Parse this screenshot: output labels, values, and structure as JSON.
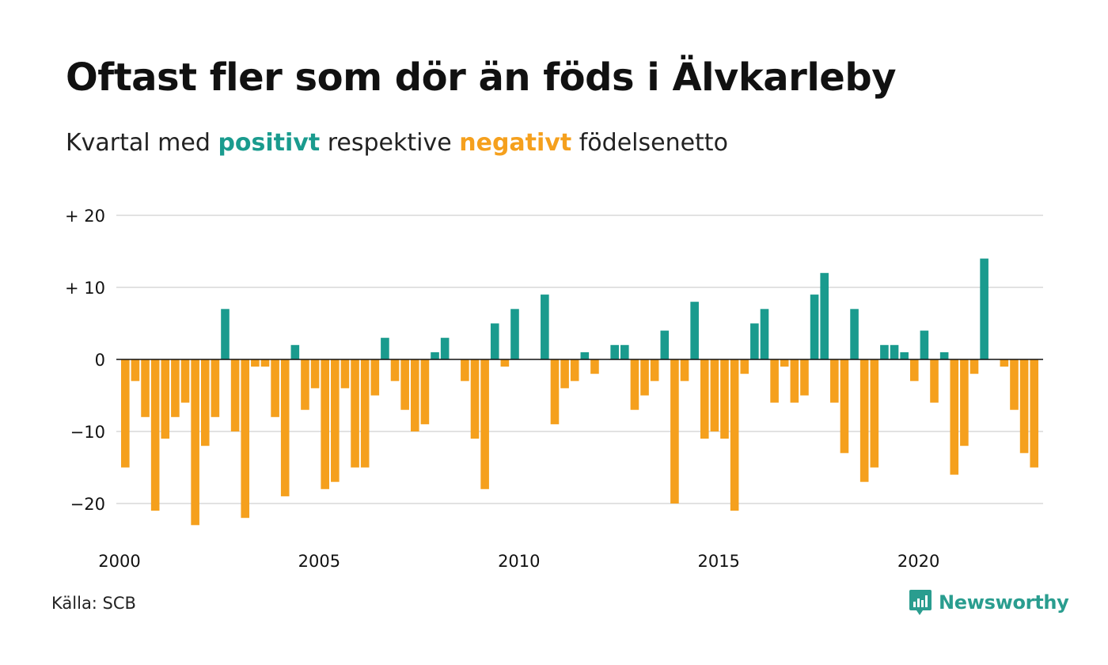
{
  "header": {
    "title": "Oftast fler som dör än föds i Älvkarleby",
    "subtitle_pre": "Kvartal med",
    "subtitle_pos": "positivt",
    "subtitle_mid": "respektive",
    "subtitle_neg": "negativt",
    "subtitle_post": "födelsenetto"
  },
  "footer": {
    "source": "Källa: SCB",
    "brand": "Newsworthy"
  },
  "colors": {
    "positive": "#1a9b8e",
    "negative": "#f5a01d",
    "grid": "#e2e2e2",
    "zero": "#111111",
    "brand": "#2a9d8f"
  },
  "chart_data": {
    "type": "bar",
    "x_start": "2000 Q1",
    "ylim": [
      -25,
      20
    ],
    "yticks": [
      20,
      10,
      0,
      -10,
      -20
    ],
    "ytick_labels": [
      "+ 20",
      "+ 10",
      "0",
      "−10",
      "−20"
    ],
    "xtick_labels": [
      "2000",
      "2005",
      "2010",
      "2015",
      "2020"
    ],
    "grid": true,
    "values": [
      -15,
      -3,
      -8,
      -21,
      -11,
      -8,
      -6,
      -23,
      -12,
      -8,
      7,
      -10,
      -22,
      -1,
      -1,
      -8,
      -19,
      2,
      -7,
      -4,
      -18,
      -17,
      -4,
      -15,
      -15,
      -5,
      3,
      -3,
      -7,
      -10,
      -9,
      1,
      3,
      0,
      -3,
      -11,
      -18,
      5,
      -1,
      7,
      0,
      0,
      9,
      -9,
      -4,
      -3,
      1,
      -2,
      0,
      2,
      2,
      -7,
      -5,
      -3,
      4,
      -20,
      -3,
      8,
      -11,
      -10,
      -11,
      -21,
      -2,
      5,
      7,
      -6,
      -1,
      -6,
      -5,
      9,
      12,
      -6,
      -13,
      7,
      -17,
      -15,
      2,
      2,
      1,
      -3,
      4,
      -6,
      1,
      -16,
      -12,
      -2,
      14,
      0,
      -1,
      -7,
      -13,
      -15
    ]
  }
}
